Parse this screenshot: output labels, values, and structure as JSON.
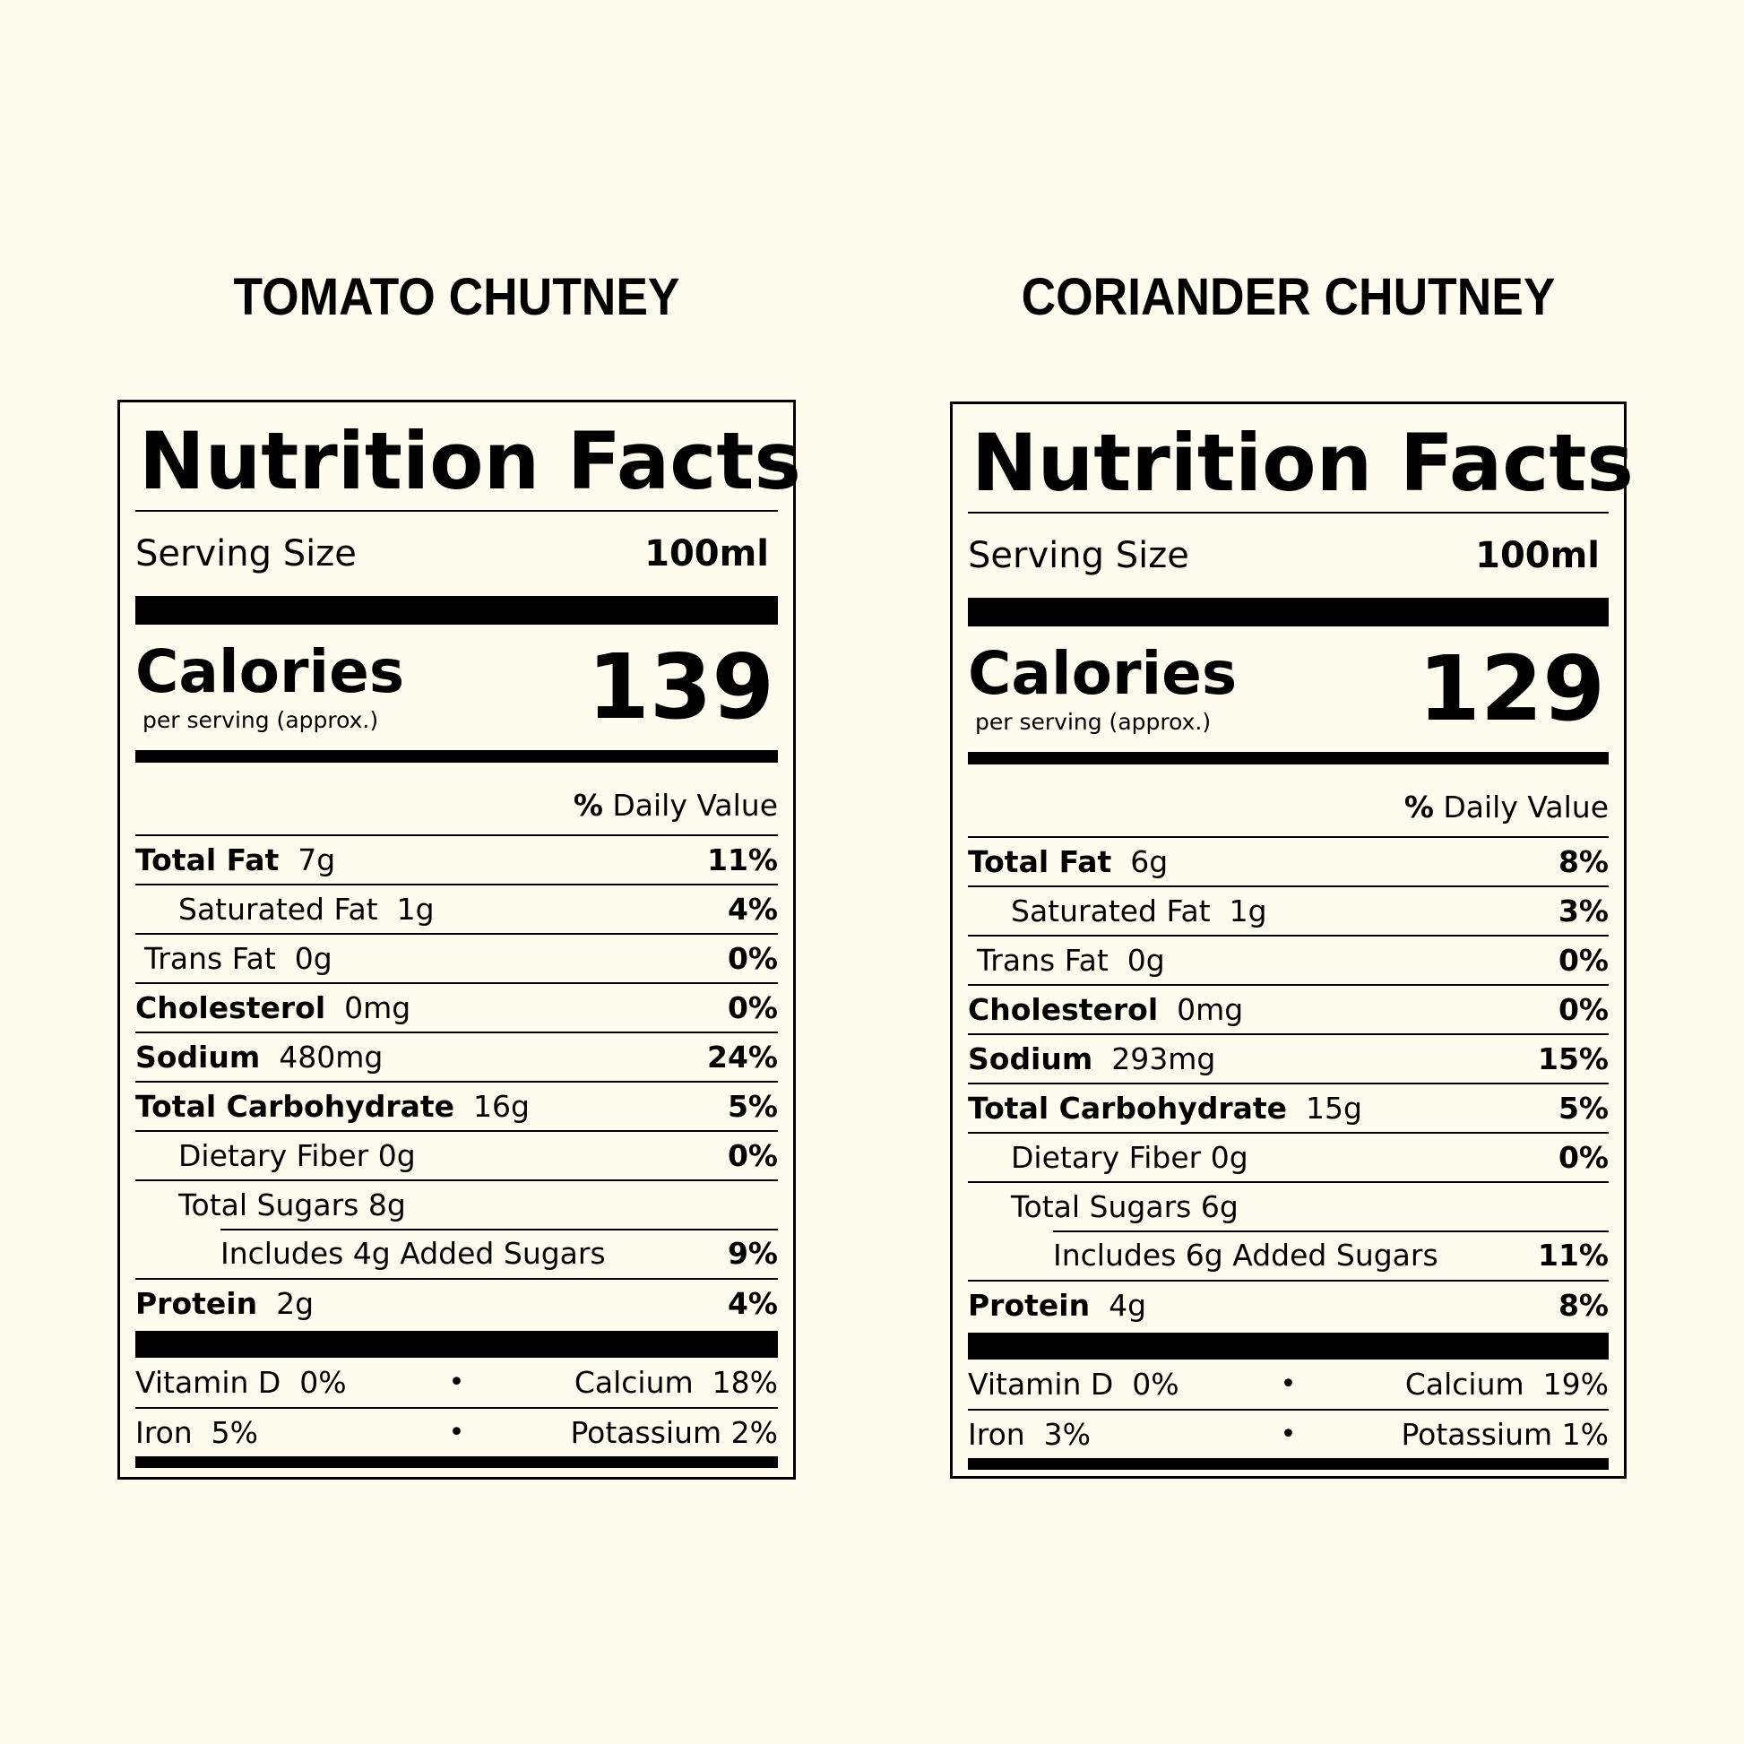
{
  "labels": [
    {
      "product": "TOMATO CHUTNEY",
      "heading": "Nutrition Facts",
      "serving_label": "Serving Size",
      "serving_value": "100ml",
      "calories_label": "Calories",
      "calories_sub": "per serving (approx.)",
      "calories_value": "139",
      "dv_bold": "%",
      "dv_text": " Daily Value",
      "rows": {
        "total_fat": {
          "name": "Total Fat",
          "amount": "7g",
          "pct": "11%"
        },
        "sat_fat": {
          "name": "Saturated Fat",
          "amount": "1g",
          "pct": "4%"
        },
        "trans_fat": {
          "name": "Trans Fat",
          "amount": "0g",
          "pct": "0%"
        },
        "cholesterol": {
          "name": "Cholesterol",
          "amount": "0mg",
          "pct": "0%"
        },
        "sodium": {
          "name": "Sodium",
          "amount": "480mg",
          "pct": "24%"
        },
        "carb": {
          "name": "Total Carbohydrate",
          "amount": "16g",
          "pct": "5%"
        },
        "fiber": {
          "name": "Dietary Fiber",
          "amount": "0g",
          "pct": "0%"
        },
        "sugars": {
          "name": "Total Sugars",
          "amount": "8g",
          "pct": ""
        },
        "added_sugars": {
          "name": "Includes 4g Added Sugars",
          "amount": "",
          "pct": "9%"
        },
        "protein": {
          "name": "Protein",
          "amount": "2g",
          "pct": "4%"
        }
      },
      "minerals": {
        "vitamin_d": {
          "name": "Vitamin D",
          "value": "0%"
        },
        "calcium": {
          "name": "Calcium",
          "value": "18%"
        },
        "iron": {
          "name": "Iron",
          "value": "5%"
        },
        "potassium": {
          "name": "Potassium",
          "value": "2%"
        }
      }
    },
    {
      "product": "CORIANDER CHUTNEY",
      "heading": "Nutrition Facts",
      "serving_label": "Serving Size",
      "serving_value": "100ml",
      "calories_label": "Calories",
      "calories_sub": "per serving (approx.)",
      "calories_value": "129",
      "dv_bold": "%",
      "dv_text": " Daily Value",
      "rows": {
        "total_fat": {
          "name": "Total Fat",
          "amount": "6g",
          "pct": "8%"
        },
        "sat_fat": {
          "name": "Saturated Fat",
          "amount": "1g",
          "pct": "3%"
        },
        "trans_fat": {
          "name": "Trans Fat",
          "amount": "0g",
          "pct": "0%"
        },
        "cholesterol": {
          "name": "Cholesterol",
          "amount": "0mg",
          "pct": "0%"
        },
        "sodium": {
          "name": "Sodium",
          "amount": "293mg",
          "pct": "15%"
        },
        "carb": {
          "name": "Total Carbohydrate",
          "amount": "15g",
          "pct": "5%"
        },
        "fiber": {
          "name": "Dietary Fiber",
          "amount": "0g",
          "pct": "0%"
        },
        "sugars": {
          "name": "Total Sugars",
          "amount": "6g",
          "pct": ""
        },
        "added_sugars": {
          "name": "Includes 6g Added Sugars",
          "amount": "",
          "pct": "11%"
        },
        "protein": {
          "name": "Protein",
          "amount": "4g",
          "pct": "8%"
        }
      },
      "minerals": {
        "vitamin_d": {
          "name": "Vitamin D",
          "value": "0%"
        },
        "calcium": {
          "name": "Calcium",
          "value": "19%"
        },
        "iron": {
          "name": "Iron",
          "value": "3%"
        },
        "potassium": {
          "name": "Potassium",
          "value": "1%"
        }
      }
    }
  ]
}
